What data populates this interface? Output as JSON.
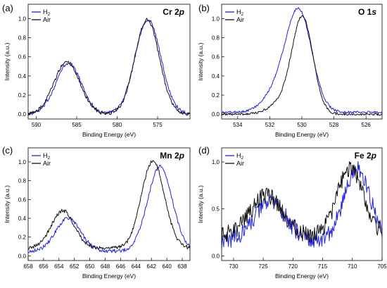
{
  "colors": {
    "H2": "#2222dd",
    "Air": "#111111"
  },
  "panels": [
    {
      "letter": "(a)",
      "core_level": {
        "element": "Cr",
        "orbital": "2p"
      },
      "legend": [
        {
          "label": "H",
          "subscript": "2",
          "series": "H2"
        },
        {
          "label": "Air",
          "subscript": "",
          "series": "Air"
        }
      ],
      "legend_placement": "top-left",
      "xlabel": "Binding Energy (eV)",
      "ylabel": "Intensity (a.u.)",
      "x_reversed": true,
      "xlim": [
        591,
        571
      ],
      "xticks": [
        590,
        585,
        580,
        575
      ],
      "ylim": [
        -0.05,
        1.15
      ],
      "yticks": [
        "0.0",
        "0.2",
        "0.4",
        "0.6",
        "0.8",
        "1.0"
      ],
      "noise_amp": 0.018,
      "series": [
        {
          "name": "H2",
          "peaks": [
            [
              586,
              0.53,
              1.6
            ],
            [
              576.2,
              0.99,
              1.6
            ]
          ],
          "base": 0.0
        },
        {
          "name": "Air",
          "peaks": [
            [
              586.2,
              0.55,
              1.6
            ],
            [
              576.3,
              0.99,
              1.5
            ]
          ],
          "base": 0.0
        }
      ]
    },
    {
      "letter": "(b)",
      "core_level": {
        "element": "O",
        "orbital": "1s"
      },
      "legend": [
        {
          "label": "H",
          "subscript": "2",
          "series": "H2"
        },
        {
          "label": "Air",
          "subscript": "",
          "series": "Air"
        }
      ],
      "legend_placement": "top-left",
      "xlabel": "Binding Energy (eV)",
      "ylabel": "Intensity (a.u.)",
      "x_reversed": true,
      "xlim": [
        535,
        525
      ],
      "xticks": [
        534,
        532,
        530,
        528,
        526
      ],
      "ylim": [
        -0.05,
        1.15
      ],
      "yticks": [
        "0.0",
        "0.2",
        "0.4",
        "0.6",
        "0.8",
        "1.0"
      ],
      "noise_amp": 0.012,
      "series": [
        {
          "name": "H2",
          "peaks": [
            [
              530.15,
              1.0,
              0.8
            ],
            [
              531.4,
              0.22,
              0.9
            ]
          ],
          "base": 0.02
        },
        {
          "name": "Air",
          "peaks": [
            [
              529.95,
              0.99,
              0.65
            ],
            [
              531.2,
              0.12,
              0.8
            ]
          ],
          "base": 0.0
        }
      ]
    },
    {
      "letter": "(c)",
      "core_level": {
        "element": "Mn",
        "orbital": "2p"
      },
      "legend": [
        {
          "label": "H",
          "subscript": "2",
          "series": "H2"
        },
        {
          "label": "Air",
          "subscript": "",
          "series": "Air"
        }
      ],
      "legend_placement": "top-left",
      "xlabel": "Binding Energy (eV)",
      "ylabel": "Intensity (a.u.)",
      "x_reversed": true,
      "xlim": [
        658,
        637
      ],
      "xticks": [
        658,
        656,
        654,
        652,
        650,
        648,
        646,
        644,
        642,
        640,
        638
      ],
      "ylim": [
        -0.05,
        1.15
      ],
      "yticks": [
        "0.0",
        "0.2",
        "0.4",
        "0.6",
        "0.8",
        "1.0"
      ],
      "noise_amp": 0.02,
      "series": [
        {
          "name": "H2",
          "peaks": [
            [
              652.8,
              0.35,
              1.6
            ],
            [
              640.9,
              0.9,
              1.6
            ]
          ],
          "base": 0.05
        },
        {
          "name": "Air",
          "peaks": [
            [
              653.5,
              0.4,
              1.5
            ],
            [
              641.8,
              0.93,
              1.5
            ]
          ],
          "base": 0.08
        }
      ]
    },
    {
      "letter": "(d)",
      "core_level": {
        "element": "Fe",
        "orbital": "2p"
      },
      "legend": [
        {
          "label": "H",
          "subscript": "2",
          "series": "H2"
        },
        {
          "label": "Air",
          "subscript": "",
          "series": "Air"
        }
      ],
      "legend_placement": "top-left",
      "xlabel": "Binding Energy (eV)",
      "ylabel": "Intensity (a.u.)",
      "x_reversed": true,
      "xlim": [
        732,
        705
      ],
      "xticks": [
        730,
        725,
        720,
        715,
        710,
        705
      ],
      "ylim": [
        -0.05,
        1.15
      ],
      "yticks": [
        "0.0",
        "0.5",
        "1.0"
      ],
      "noise_amp": 0.09,
      "series": [
        {
          "name": "H2",
          "peaks": [
            [
              723.8,
              0.42,
              2.6
            ],
            [
              709.2,
              0.76,
              2.2
            ]
          ],
          "base": 0.16
        },
        {
          "name": "Air",
          "peaks": [
            [
              724.5,
              0.42,
              2.6
            ],
            [
              710.3,
              0.72,
              2.2
            ]
          ],
          "base": 0.22
        }
      ]
    }
  ]
}
